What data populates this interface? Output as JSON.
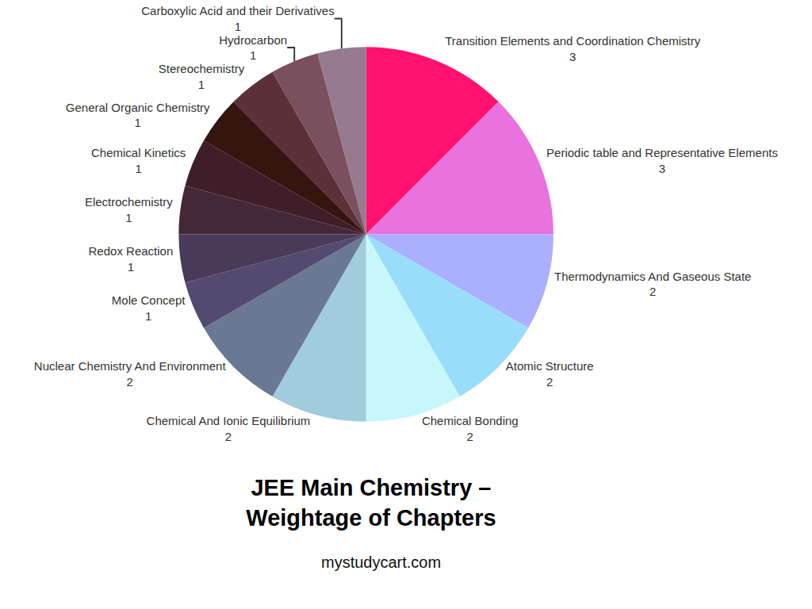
{
  "chart_data": {
    "type": "pie",
    "title": "JEE Main Chemistry –\nWeightage of Chapters",
    "annotations": [
      "mystudycart.com"
    ],
    "categories": [
      "Transition Elements and Coordination Chemistry",
      "Periodic table and Representative Elements",
      "Thermodynamics And Gaseous State",
      "Atomic Structure",
      "Chemical Bonding",
      "Chemical And Ionic Equilibrium",
      "Nuclear Chemistry And Environment",
      "Mole Concept",
      "Redox Reaction",
      "Electrochemistry",
      "Chemical Kinetics",
      "General Organic Chemistry",
      "Stereochemistry",
      "Hydrocarbon",
      "Carboxylic Acid and their Derivatives"
    ],
    "values": [
      3,
      3,
      2,
      2,
      2,
      2,
      2,
      1,
      1,
      1,
      1,
      1,
      1,
      1,
      1
    ],
    "colors": [
      "#ff1270",
      "#e872de",
      "#aaafff",
      "#99ddfb",
      "#c6f8fb",
      "#a0ccdb",
      "#6a7894",
      "#544a70",
      "#4a3a5a",
      "#452838",
      "#3f1e2a",
      "#351510",
      "#5c3038",
      "#7a505e",
      "#957a90"
    ],
    "data_labels": true
  }
}
